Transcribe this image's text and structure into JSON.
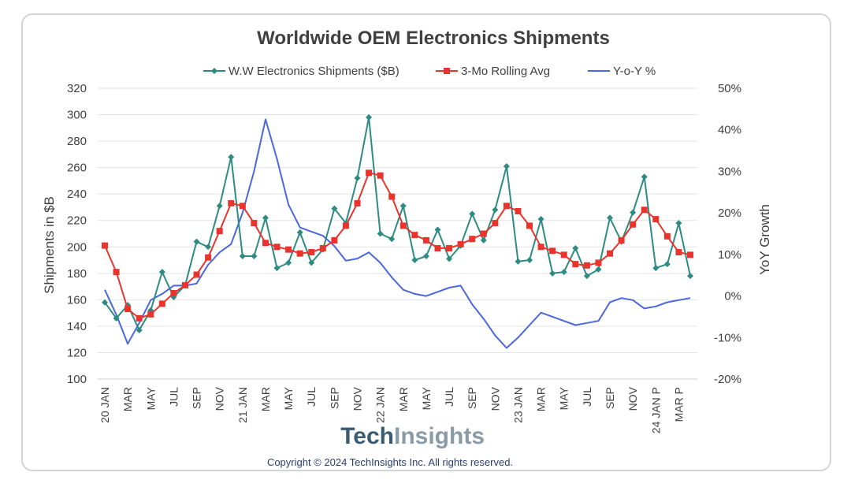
{
  "chart_data": {
    "type": "line",
    "title": "Worldwide OEM Electronics Shipments",
    "ylabel": "Shipments in $B",
    "y2label": "YoY Growth",
    "ylim": [
      100,
      320
    ],
    "y2lim": [
      -20,
      50
    ],
    "yticks": [
      "100",
      "120",
      "140",
      "160",
      "180",
      "200",
      "220",
      "240",
      "260",
      "280",
      "300",
      "320"
    ],
    "y2ticks": [
      "-20%",
      "-10%",
      "0%",
      "10%",
      "20%",
      "30%",
      "40%",
      "50%"
    ],
    "x_labels": [
      "20 JAN",
      "",
      "MAR",
      "",
      "MAY",
      "",
      "JUL",
      "",
      "SEP",
      "",
      "NOV",
      "",
      "21 JAN",
      "",
      "MAR",
      "",
      "MAY",
      "",
      "JUL",
      "",
      "SEP",
      "",
      "NOV",
      "",
      "22 JAN",
      "",
      "MAR",
      "",
      "MAY",
      "",
      "JUL",
      "",
      "SEP",
      "",
      "NOV",
      "",
      "23 JAN",
      "",
      "MAR",
      "",
      "MAY",
      "",
      "JUL",
      "",
      "SEP",
      "",
      "NOV",
      "",
      "24 JAN P",
      "",
      "MAR P",
      ""
    ],
    "legend_position": "top",
    "series": [
      {
        "name": "W.W Electronics  Shipments ($B)",
        "color": "#2e8b82",
        "marker": "diamond",
        "axis": "left",
        "values": [
          158,
          146,
          156,
          137,
          152,
          181,
          162,
          171,
          204,
          200,
          231,
          268,
          193,
          193,
          222,
          184,
          188,
          211,
          188,
          198,
          229,
          218,
          252,
          298,
          210,
          206,
          231,
          190,
          193,
          213,
          191,
          201,
          225,
          205,
          228,
          261,
          189,
          190,
          221,
          180,
          181,
          199,
          178,
          183,
          222,
          204,
          226,
          253,
          184,
          187,
          218,
          178
        ]
      },
      {
        "name": "3-Mo Rolling Avg",
        "color": "#e8342c",
        "marker": "square",
        "axis": "left",
        "values": [
          201,
          181,
          153,
          146,
          149,
          157,
          165,
          171,
          179,
          192,
          212,
          233,
          231,
          218,
          203,
          200,
          198,
          195,
          196,
          199,
          205,
          216,
          233,
          256,
          254,
          238,
          216,
          209,
          205,
          199,
          199,
          202,
          206,
          210,
          218,
          231,
          227,
          216,
          200,
          197,
          194,
          187,
          186,
          188,
          195,
          205,
          217,
          228,
          221,
          208,
          196,
          194
        ]
      },
      {
        "name": "Y-o-Y %",
        "color": "#4a66e0",
        "marker": "none",
        "axis": "right",
        "values": [
          1.5,
          -4.5,
          -11.5,
          -6.5,
          -1,
          0.5,
          2.5,
          2.5,
          3,
          7.5,
          10.5,
          12.5,
          20,
          30,
          42.5,
          33,
          22,
          16.5,
          15.5,
          14.5,
          12,
          8.5,
          9,
          10.5,
          8,
          4.5,
          1.5,
          0.5,
          0,
          1,
          2,
          2.5,
          -2,
          -5.5,
          -9.5,
          -12.5,
          -10,
          -7,
          -4,
          -5,
          -6,
          -7,
          -6.5,
          -6,
          -1.5,
          -0.5,
          -1,
          -3,
          -2.5,
          -1.5,
          -1,
          -0.5
        ]
      }
    ]
  },
  "branding": {
    "logo_part1": "Tech",
    "logo_part2": "Insights",
    "copyright": "Copyright © 2024 TechInsights Inc.  All rights reserved."
  }
}
